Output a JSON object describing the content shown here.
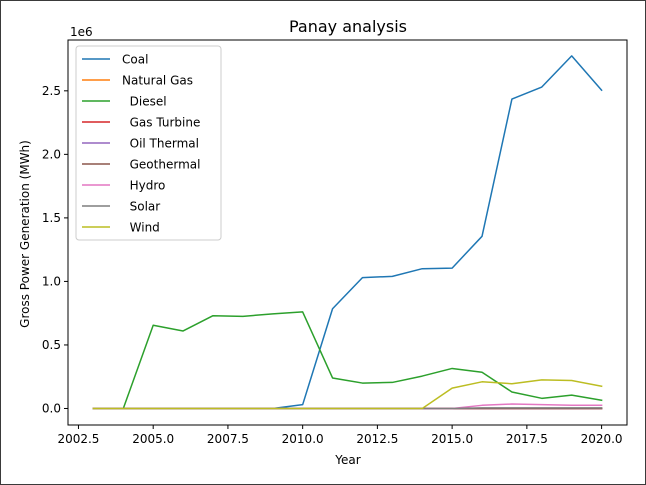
{
  "chart_data": {
    "type": "line",
    "title": "Panay analysis",
    "xlabel": "Year",
    "ylabel": "Gross Power Generation (MWh)",
    "y_offset_label": "1e6",
    "xlim": [
      2002.15,
      2020.85
    ],
    "ylim": [
      -130000,
      2900000
    ],
    "x_ticks": [
      2002.5,
      2005,
      2007.5,
      2010,
      2012.5,
      2015,
      2017.5,
      2020
    ],
    "x_tick_labels": [
      "2002.5",
      "2005.0",
      "2007.5",
      "2010.0",
      "2012.5",
      "2015.0",
      "2017.5",
      "2020.0"
    ],
    "y_ticks": [
      0,
      500000,
      1000000,
      1500000,
      2000000,
      2500000
    ],
    "y_tick_labels": [
      "0.0",
      "0.5",
      "1.0",
      "1.5",
      "2.0",
      "2.5"
    ],
    "grid": false,
    "legend_position": "top-left",
    "x": [
      2003,
      2004,
      2005,
      2006,
      2007,
      2008,
      2009,
      2010,
      2011,
      2012,
      2013,
      2014,
      2015,
      2016,
      2017,
      2018,
      2019,
      2020
    ],
    "series": [
      {
        "name": "Coal",
        "color": "#1f77b4",
        "values": [
          0,
          0,
          0,
          0,
          0,
          0,
          0,
          30000,
          785000,
          1030000,
          1040000,
          1100000,
          1105000,
          1355000,
          2435000,
          2530000,
          2775000,
          2505000
        ]
      },
      {
        "name": "Natural Gas",
        "color": "#ff7f0e",
        "values": [
          0,
          0,
          0,
          0,
          0,
          0,
          0,
          0,
          0,
          0,
          0,
          0,
          0,
          0,
          0,
          0,
          0,
          0
        ]
      },
      {
        "name": "  Diesel",
        "color": "#2ca02c",
        "values": [
          0,
          0,
          655000,
          610000,
          730000,
          725000,
          745000,
          760000,
          240000,
          200000,
          205000,
          255000,
          315000,
          285000,
          130000,
          80000,
          105000,
          65000
        ]
      },
      {
        "name": "  Gas Turbine",
        "color": "#d62728",
        "values": [
          0,
          0,
          0,
          0,
          0,
          0,
          0,
          0,
          0,
          0,
          0,
          0,
          0,
          0,
          0,
          0,
          0,
          0
        ]
      },
      {
        "name": "  Oil Thermal",
        "color": "#9467bd",
        "values": [
          0,
          0,
          0,
          0,
          0,
          0,
          0,
          0,
          0,
          0,
          0,
          0,
          0,
          0,
          0,
          0,
          0,
          0
        ]
      },
      {
        "name": "  Geothermal",
        "color": "#8c564b",
        "values": [
          0,
          0,
          0,
          0,
          0,
          0,
          0,
          0,
          0,
          0,
          0,
          0,
          0,
          0,
          0,
          0,
          0,
          0
        ]
      },
      {
        "name": "  Hydro",
        "color": "#e377c2",
        "values": [
          0,
          0,
          0,
          0,
          0,
          0,
          0,
          0,
          0,
          0,
          0,
          0,
          0,
          25000,
          35000,
          30000,
          25000,
          25000
        ]
      },
      {
        "name": "  Solar",
        "color": "#7f7f7f",
        "values": [
          0,
          0,
          0,
          0,
          0,
          0,
          0,
          0,
          0,
          0,
          0,
          0,
          0,
          5000,
          5000,
          5000,
          5000,
          5000
        ]
      },
      {
        "name": "  Wind",
        "color": "#bcbd22",
        "values": [
          0,
          0,
          0,
          0,
          0,
          0,
          0,
          0,
          0,
          0,
          0,
          0,
          160000,
          210000,
          195000,
          225000,
          220000,
          175000
        ]
      }
    ]
  }
}
